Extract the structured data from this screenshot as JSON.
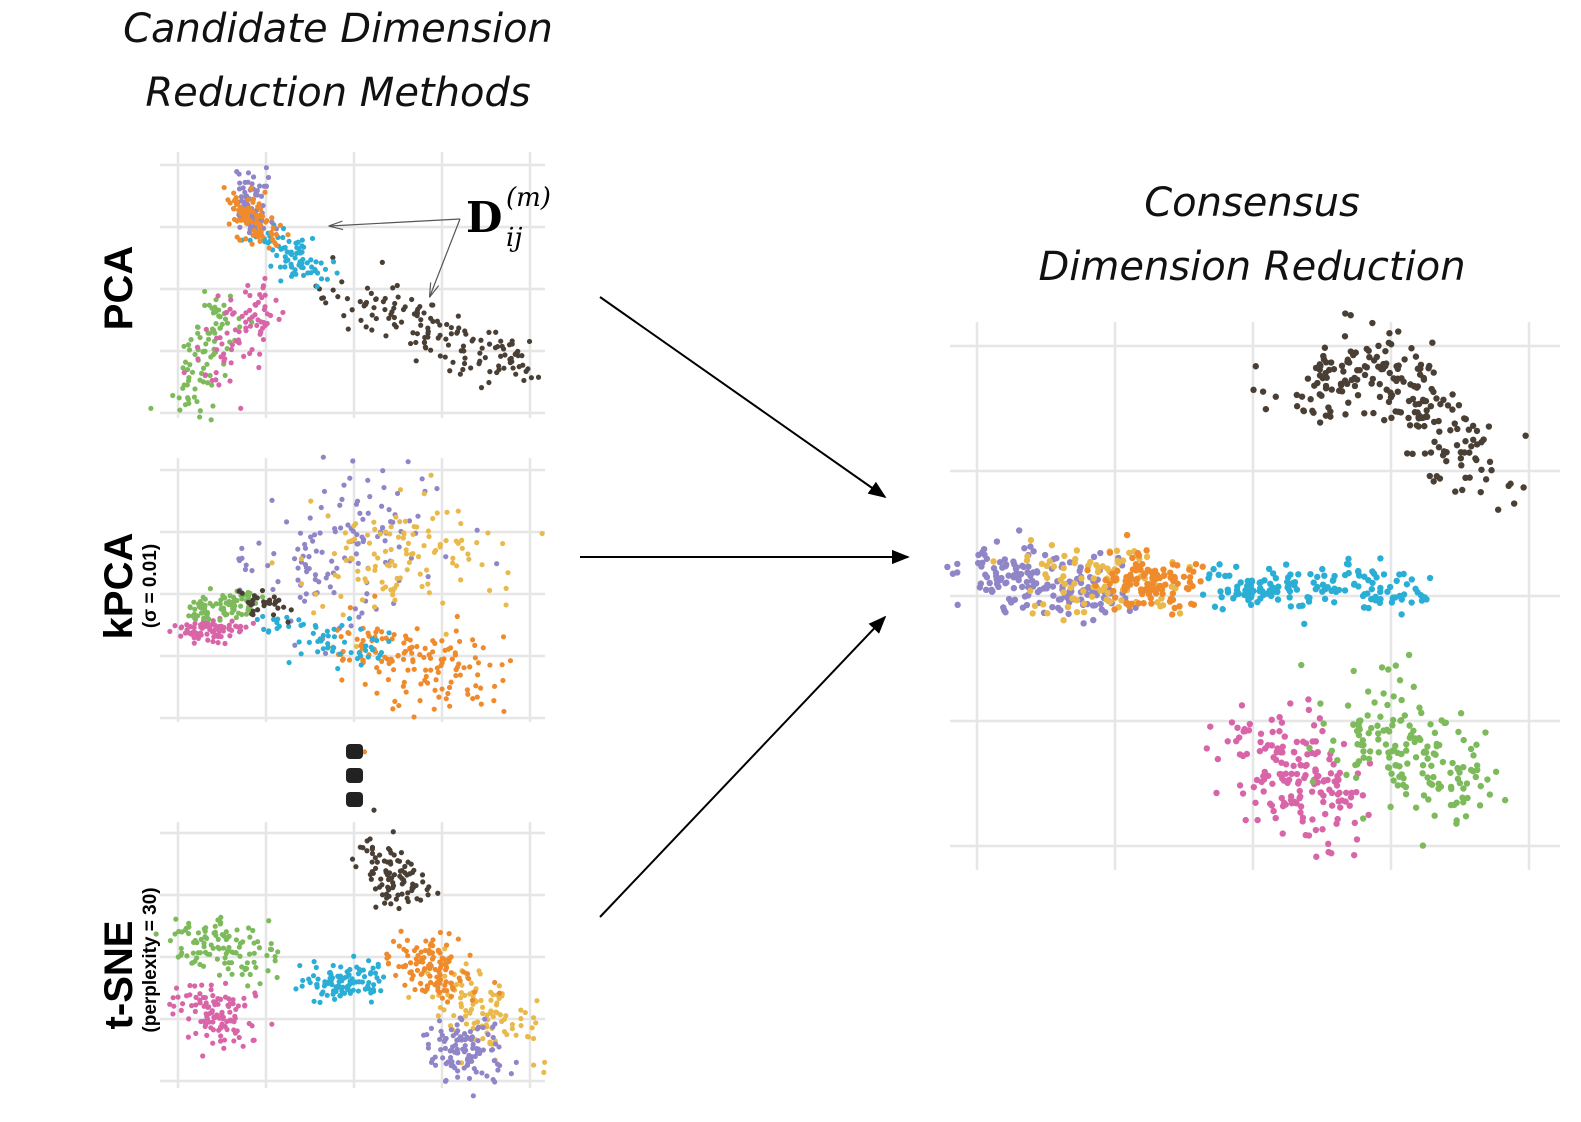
{
  "left_title": [
    "Candidate Dimension",
    "Reduction Methods"
  ],
  "right_title": [
    "Consensus",
    "Dimension Reduction"
  ],
  "annotation": {
    "base": "D",
    "sub": "ij",
    "sup": "(m)"
  },
  "colors": {
    "purple": "#8f85c7",
    "orange": "#ef8b2c",
    "blue": "#2aaed6",
    "green": "#7dba5c",
    "pink": "#d965a9",
    "dark": "#4a3f35",
    "yellow": "#e9b94c"
  },
  "plots": [
    {
      "id": "pca",
      "label": "PCA",
      "param": "",
      "clusters": [
        {
          "color": "green",
          "a": [
            0.1,
            3.9
          ],
          "b": [
            0.5,
            2.2
          ],
          "s": 0.15,
          "n": 90
        },
        {
          "color": "pink",
          "a": [
            0.5,
            3.4
          ],
          "b": [
            1.0,
            2.0
          ],
          "s": 0.2,
          "n": 80
        },
        {
          "color": "dark",
          "a": [
            1.9,
            2.0
          ],
          "b": [
            3.9,
            3.3
          ],
          "s": 0.2,
          "n": 150
        },
        {
          "color": "blue",
          "a": [
            1.0,
            1.1
          ],
          "b": [
            1.6,
            1.8
          ],
          "s": 0.15,
          "n": 80
        },
        {
          "color": "purple",
          "a": [
            0.8,
            0.2
          ],
          "b": [
            0.85,
            1.0
          ],
          "s": 0.1,
          "n": 80
        },
        {
          "color": "orange",
          "a": [
            0.7,
            0.6
          ],
          "b": [
            1.0,
            1.2
          ],
          "s": 0.12,
          "n": 80
        }
      ]
    },
    {
      "id": "kpca",
      "label": "kPCA",
      "param": "(σ = 0.01)",
      "clusters": [
        {
          "color": "purple",
          "a": [
            1.3,
            2.0
          ],
          "b": [
            2.3,
            0.5
          ],
          "s": 0.45,
          "n": 130
        },
        {
          "color": "yellow",
          "a": [
            2.0,
            1.6
          ],
          "b": [
            3.1,
            1.2
          ],
          "s": 0.45,
          "n": 120
        },
        {
          "color": "orange",
          "a": [
            2.0,
            2.7
          ],
          "b": [
            3.4,
            3.5
          ],
          "s": 0.3,
          "n": 150
        },
        {
          "color": "blue",
          "a": [
            1.0,
            2.5
          ],
          "b": [
            2.4,
            3.0
          ],
          "s": 0.15,
          "n": 60
        },
        {
          "color": "pink",
          "a": [
            0.05,
            2.6
          ],
          "b": [
            0.7,
            2.6
          ],
          "s": 0.1,
          "n": 80
        },
        {
          "color": "green",
          "a": [
            0.2,
            2.3
          ],
          "b": [
            0.8,
            2.1
          ],
          "s": 0.1,
          "n": 90
        },
        {
          "color": "dark",
          "a": [
            0.7,
            2.1
          ],
          "b": [
            1.2,
            2.3
          ],
          "s": 0.1,
          "n": 30
        }
      ]
    },
    {
      "id": "tsne",
      "label": "t-SNE",
      "param": "(perplexity = 30)",
      "clusters": [
        {
          "color": "dark",
          "a": [
            2.3,
            0.2
          ],
          "b": [
            2.6,
            1.1
          ],
          "s": 0.17,
          "n": 90
        },
        {
          "color": "green",
          "a": [
            0.1,
            1.6
          ],
          "b": [
            0.9,
            2.1
          ],
          "s": 0.2,
          "n": 110
        },
        {
          "color": "pink",
          "a": [
            0.3,
            2.7
          ],
          "b": [
            0.6,
            3.2
          ],
          "s": 0.2,
          "n": 110
        },
        {
          "color": "blue",
          "a": [
            1.6,
            2.4
          ],
          "b": [
            2.2,
            2.4
          ],
          "s": 0.15,
          "n": 100
        },
        {
          "color": "yellow",
          "a": [
            3.1,
            2.4
          ],
          "b": [
            3.8,
            3.2
          ],
          "s": 0.25,
          "n": 110
        },
        {
          "color": "purple",
          "a": [
            3.1,
            3.2
          ],
          "b": [
            3.4,
            3.8
          ],
          "s": 0.2,
          "n": 110
        },
        {
          "color": "orange",
          "a": [
            2.7,
            1.9
          ],
          "b": [
            3.1,
            2.4
          ],
          "s": 0.2,
          "n": 120
        }
      ]
    },
    {
      "id": "consensus",
      "label": "",
      "param": "",
      "clusters": [
        {
          "color": "dark",
          "a": [
            2.3,
            0.5
          ],
          "b": [
            2.9,
            0.05
          ],
          "s": 0.15,
          "n": 80
        },
        {
          "color": "dark",
          "a": [
            2.9,
            0.05
          ],
          "b": [
            3.7,
            1.1
          ],
          "s": 0.17,
          "n": 140
        },
        {
          "color": "purple",
          "a": [
            0.0,
            1.8
          ],
          "b": [
            1.0,
            2.0
          ],
          "s": 0.12,
          "n": 170
        },
        {
          "color": "yellow",
          "a": [
            0.5,
            1.85
          ],
          "b": [
            1.3,
            1.9
          ],
          "s": 0.14,
          "n": 100
        },
        {
          "color": "orange",
          "a": [
            1.0,
            1.9
          ],
          "b": [
            1.5,
            1.9
          ],
          "s": 0.11,
          "n": 110
        },
        {
          "color": "blue",
          "a": [
            1.7,
            1.95
          ],
          "b": [
            3.2,
            1.95
          ],
          "s": 0.09,
          "n": 160
        },
        {
          "color": "pink",
          "a": [
            2.0,
            3.1
          ],
          "b": [
            2.6,
            3.8
          ],
          "s": 0.2,
          "n": 170
        },
        {
          "color": "green",
          "a": [
            2.7,
            2.9
          ],
          "b": [
            3.6,
            3.6
          ],
          "s": 0.2,
          "n": 170
        }
      ]
    }
  ]
}
